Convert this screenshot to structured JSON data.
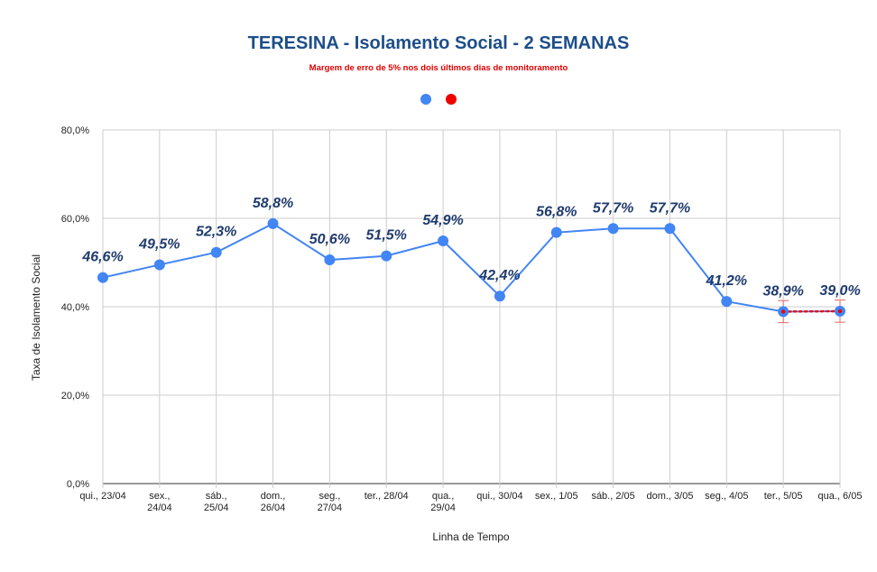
{
  "chart_data": {
    "type": "line",
    "title": "TERESINA - Isolamento Social - 2 SEMANAS",
    "subtitle": "Margem de erro de 5% nos dois últimos dias de monitoramento",
    "xlabel": "Linha de Tempo",
    "ylabel": "Taxa de Isolamento Social",
    "ylim": [
      0,
      80
    ],
    "yticks": [
      "0,0%",
      "20,0%",
      "40,0%",
      "60,0%",
      "80,0%"
    ],
    "grid": true,
    "legend": "top-center",
    "categories": [
      [
        "qui., 23/04"
      ],
      [
        "sex.,",
        "24/04"
      ],
      [
        "sáb.,",
        "25/04"
      ],
      [
        "dom.,",
        "26/04"
      ],
      [
        "seg.,",
        "27/04"
      ],
      [
        "ter., 28/04"
      ],
      [
        "qua.,",
        "29/04"
      ],
      [
        "qui., 30/04"
      ],
      [
        "sex., 1/05"
      ],
      [
        "sáb., 2/05"
      ],
      [
        "dom., 3/05"
      ],
      [
        "seg., 4/05"
      ],
      [
        "ter., 5/05"
      ],
      [
        "qua., 6/05"
      ]
    ],
    "series": [
      {
        "color": "#4285f4",
        "values": [
          46.6,
          49.5,
          52.3,
          58.8,
          50.6,
          51.5,
          54.9,
          42.4,
          56.8,
          57.7,
          57.7,
          41.2,
          38.9,
          39.0
        ],
        "labels": [
          "46,6%",
          "49,5%",
          "52,3%",
          "58,8%",
          "50,6%",
          "51,5%",
          "54,9%",
          "42,4%",
          "56,8%",
          "57,7%",
          "57,7%",
          "41,2%",
          "38,9%",
          "39,0%"
        ]
      },
      {
        "color": "#ee0000",
        "values": [
          null,
          null,
          null,
          null,
          null,
          null,
          null,
          null,
          null,
          null,
          null,
          null,
          38.9,
          39.0
        ],
        "error_margin_pct": 5
      }
    ]
  },
  "colors": {
    "title": "#1d4e89",
    "subtitle": "#e00000",
    "grid": "#cccccc",
    "error_bar": "#e06666"
  }
}
